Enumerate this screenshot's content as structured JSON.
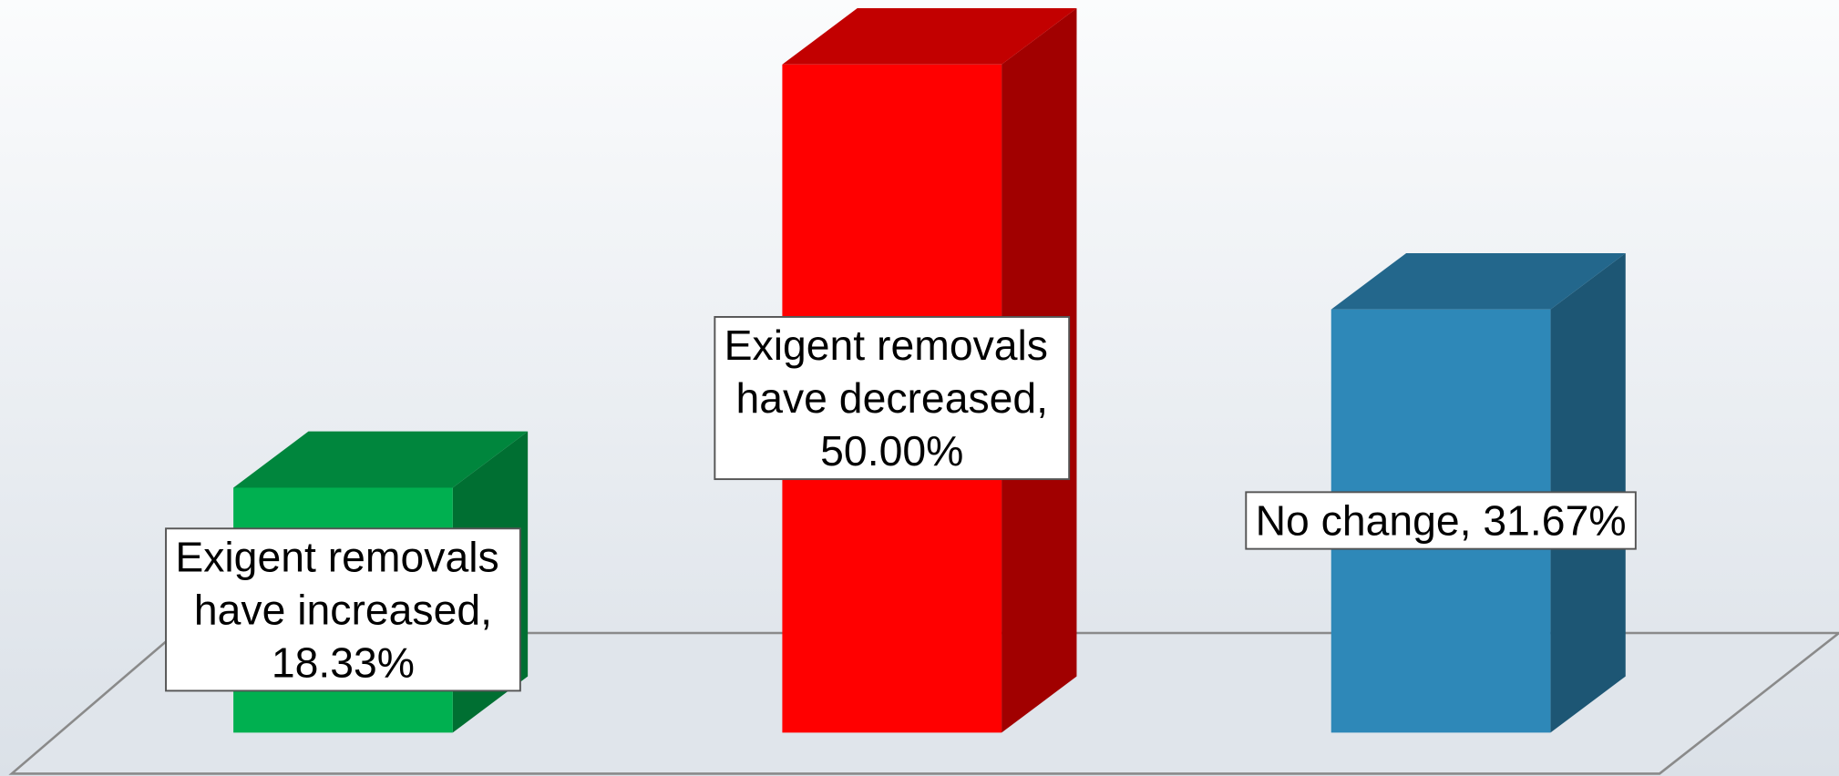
{
  "chart_data": {
    "type": "bar3d",
    "categories": [
      "Exigent removals have increased,",
      "Exigent removals have decreased,",
      "No change,"
    ],
    "values": [
      18.33,
      50.0,
      31.67
    ],
    "value_labels": [
      "18.33%",
      "50.00%",
      "31.67%"
    ],
    "colors": [
      "#00b050",
      "#ff0000",
      "#2e88b8"
    ]
  }
}
